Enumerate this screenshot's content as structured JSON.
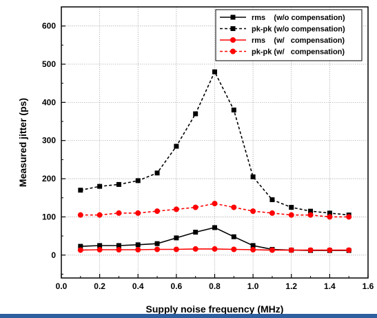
{
  "chart_data": {
    "type": "line",
    "xlabel": "Supply noise frequency (MHz)",
    "ylabel": "Measured jitter (ps)",
    "xlim": [
      0.0,
      1.6
    ],
    "ylim": [
      -60,
      650
    ],
    "x_ticks": [
      "0.0",
      "0.2",
      "0.4",
      "0.6",
      "0.8",
      "1.0",
      "1.2",
      "1.4",
      "1.6"
    ],
    "y_ticks": [
      "0",
      "100",
      "200",
      "300",
      "400",
      "500",
      "600"
    ],
    "grid": true,
    "legend_position": "top-right",
    "x": [
      0.1,
      0.2,
      0.3,
      0.4,
      0.5,
      0.6,
      0.7,
      0.8,
      0.9,
      1.0,
      1.1,
      1.2,
      1.3,
      1.4,
      1.5
    ],
    "series": [
      {
        "name": "rms    (w/o compensation)",
        "color": "#000000",
        "line": "solid",
        "marker": "square",
        "values": [
          23,
          25,
          25,
          27,
          30,
          45,
          60,
          72,
          48,
          25,
          15,
          13,
          12,
          12,
          12
        ]
      },
      {
        "name": "pk-pk (w/o compensation)",
        "color": "#000000",
        "line": "dashed",
        "marker": "square",
        "values": [
          170,
          180,
          185,
          195,
          215,
          285,
          370,
          480,
          380,
          205,
          145,
          125,
          115,
          110,
          105
        ]
      },
      {
        "name": "rms    (w/   compensation)",
        "color": "#ff0000",
        "line": "solid",
        "marker": "circle",
        "values": [
          13,
          14,
          14,
          14,
          15,
          15,
          16,
          16,
          15,
          14,
          13,
          13,
          13,
          13,
          13
        ]
      },
      {
        "name": "pk-pk (w/   compensation)",
        "color": "#ff0000",
        "line": "dashed",
        "marker": "circle",
        "values": [
          105,
          105,
          110,
          110,
          115,
          120,
          125,
          135,
          125,
          115,
          110,
          105,
          105,
          100,
          100
        ]
      }
    ]
  },
  "colors": {
    "footer_bar": "#2e5f9e",
    "grid": "#b0b0b0"
  }
}
